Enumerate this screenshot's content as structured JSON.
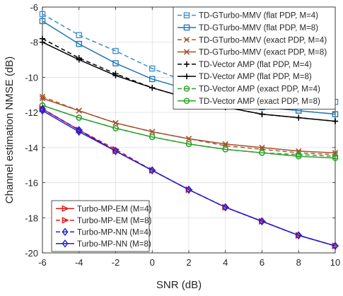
{
  "chart_data": {
    "type": "line",
    "xlabel": "SNR (dB)",
    "ylabel": "Channel estimation NMSE (dB)",
    "xlim": [
      -6,
      10
    ],
    "ylim": [
      -20,
      -6
    ],
    "grid": true,
    "x": [
      -6,
      -4,
      -2,
      0,
      2,
      4,
      6,
      8,
      10
    ],
    "xticks": [
      "-6",
      "-4",
      "-2",
      "0",
      "2",
      "4",
      "6",
      "8",
      "10"
    ],
    "yticks": [
      "-20",
      "-18",
      "-16",
      "-14",
      "-12",
      "-10",
      "-8",
      "-6"
    ],
    "legend_top_right": [
      0,
      1,
      2,
      3,
      4,
      5,
      6,
      7
    ],
    "legend_bottom_left": [
      8,
      9,
      10,
      11
    ],
    "series": [
      {
        "name": "TD-GTurbo-MMV (flat PDP, M=4)",
        "color": "#3d8fd1",
        "dash": "dashed",
        "marker": "square",
        "values": [
          -6.4,
          -7.6,
          -8.5,
          -9.5,
          -10.3,
          -10.9,
          -11.3,
          -11.5,
          -11.4
        ]
      },
      {
        "name": "TD-GTurbo-MMV (flat PDP, M=8)",
        "color": "#1f77b4",
        "dash": "solid",
        "marker": "square",
        "values": [
          -6.8,
          -8.1,
          -9.2,
          -10.1,
          -10.7,
          -11.3,
          -11.7,
          -11.9,
          -12.1
        ]
      },
      {
        "name": "TD-GTurbo-MMV (exact PDP, M=4)",
        "color": "#b05a2c",
        "dash": "dashed",
        "marker": "x",
        "values": [
          -11.1,
          -11.9,
          -12.6,
          -13.1,
          -13.5,
          -13.9,
          -14.1,
          -14.3,
          -14.4
        ]
      },
      {
        "name": "TD-GTurbo-MMV (exact PDP, M=8)",
        "color": "#a0522d",
        "dash": "solid",
        "marker": "x",
        "values": [
          -11.2,
          -11.9,
          -12.6,
          -13.1,
          -13.5,
          -13.8,
          -14.0,
          -14.2,
          -14.3
        ]
      },
      {
        "name": "TD-Vector AMP (flat PDP, M=4)",
        "color": "#000000",
        "dash": "dashed",
        "marker": "plus",
        "values": [
          -7.8,
          -8.9,
          -9.8,
          -10.6,
          -11.2,
          -11.7,
          -12.1,
          -12.3,
          -12.5
        ]
      },
      {
        "name": "TD-Vector AMP (flat PDP, M=8)",
        "color": "#000000",
        "dash": "solid",
        "marker": "plus",
        "values": [
          -8.0,
          -9.0,
          -9.9,
          -10.6,
          -11.2,
          -11.7,
          -12.1,
          -12.3,
          -12.5
        ]
      },
      {
        "name": "TD-Vector AMP (exact PDP, M=4)",
        "color": "#2ca02c",
        "dash": "dashed",
        "marker": "circle",
        "values": [
          -11.6,
          -12.3,
          -12.9,
          -13.4,
          -13.8,
          -14.1,
          -14.3,
          -14.4,
          -14.5
        ]
      },
      {
        "name": "TD-Vector AMP (exact PDP, M=8)",
        "color": "#2ca02c",
        "dash": "solid",
        "marker": "circle",
        "values": [
          -11.6,
          -12.3,
          -12.9,
          -13.4,
          -13.8,
          -14.1,
          -14.3,
          -14.5,
          -14.6
        ]
      },
      {
        "name": "Turbo-MP-EM (M=4)",
        "color": "#e31a1c",
        "dash": "solid",
        "marker": "triangle-right",
        "values": [
          -11.8,
          -13.0,
          -14.2,
          -15.3,
          -16.4,
          -17.4,
          -18.2,
          -19.0,
          -19.6
        ]
      },
      {
        "name": "Turbo-MP-EM (M=8)",
        "color": "#e31a1c",
        "dash": "dashed",
        "marker": "triangle-right",
        "values": [
          -11.8,
          -13.0,
          -14.1,
          -15.3,
          -16.4,
          -17.4,
          -18.2,
          -19.0,
          -19.6
        ]
      },
      {
        "name": "Turbo-MP-NN (M=4)",
        "color": "#1f1fd6",
        "dash": "dashed",
        "marker": "diamond",
        "values": [
          -11.8,
          -13.0,
          -14.2,
          -15.3,
          -16.4,
          -17.4,
          -18.2,
          -19.0,
          -19.6
        ]
      },
      {
        "name": "Turbo-MP-NN (M=8)",
        "color": "#1f1fd6",
        "dash": "solid",
        "marker": "diamond",
        "values": [
          -11.9,
          -13.1,
          -14.2,
          -15.3,
          -16.4,
          -17.4,
          -18.2,
          -19.0,
          -19.6
        ]
      }
    ]
  }
}
